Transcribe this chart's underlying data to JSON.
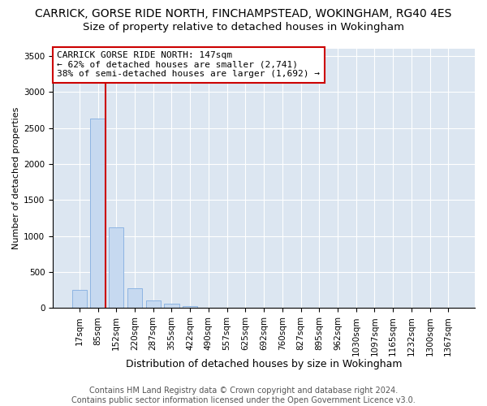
{
  "title1": "CARRICK, GORSE RIDE NORTH, FINCHAMPSTEAD, WOKINGHAM, RG40 4ES",
  "title2": "Size of property relative to detached houses in Wokingham",
  "xlabel": "Distribution of detached houses by size in Wokingham",
  "ylabel": "Number of detached properties",
  "footer1": "Contains HM Land Registry data © Crown copyright and database right 2024.",
  "footer2": "Contains public sector information licensed under the Open Government Licence v3.0.",
  "bar_labels": [
    "17sqm",
    "85sqm",
    "152sqm",
    "220sqm",
    "287sqm",
    "355sqm",
    "422sqm",
    "490sqm",
    "557sqm",
    "625sqm",
    "692sqm",
    "760sqm",
    "827sqm",
    "895sqm",
    "962sqm",
    "1030sqm",
    "1097sqm",
    "1165sqm",
    "1232sqm",
    "1300sqm",
    "1367sqm"
  ],
  "bar_values": [
    250,
    2630,
    1120,
    280,
    100,
    55,
    30,
    0,
    0,
    0,
    0,
    0,
    0,
    0,
    0,
    0,
    0,
    0,
    0,
    0,
    0
  ],
  "bar_color": "#c6d9f0",
  "bar_edge_color": "#8db4e2",
  "marker_bin_index": 1,
  "marker_line_color": "#cc0000",
  "annotation_line1": "CARRICK GORSE RIDE NORTH: 147sqm",
  "annotation_line2": "← 62% of detached houses are smaller (2,741)",
  "annotation_line3": "38% of semi-detached houses are larger (1,692) →",
  "annotation_box_color": "#ffffff",
  "annotation_box_edge": "#cc0000",
  "ylim": [
    0,
    3600
  ],
  "yticks": [
    0,
    500,
    1000,
    1500,
    2000,
    2500,
    3000,
    3500
  ],
  "plot_bg_color": "#dce6f1",
  "title1_fontsize": 10,
  "title2_fontsize": 9.5,
  "xlabel_fontsize": 9,
  "ylabel_fontsize": 8,
  "tick_fontsize": 7.5,
  "annotation_fontsize": 8,
  "footer_fontsize": 7
}
